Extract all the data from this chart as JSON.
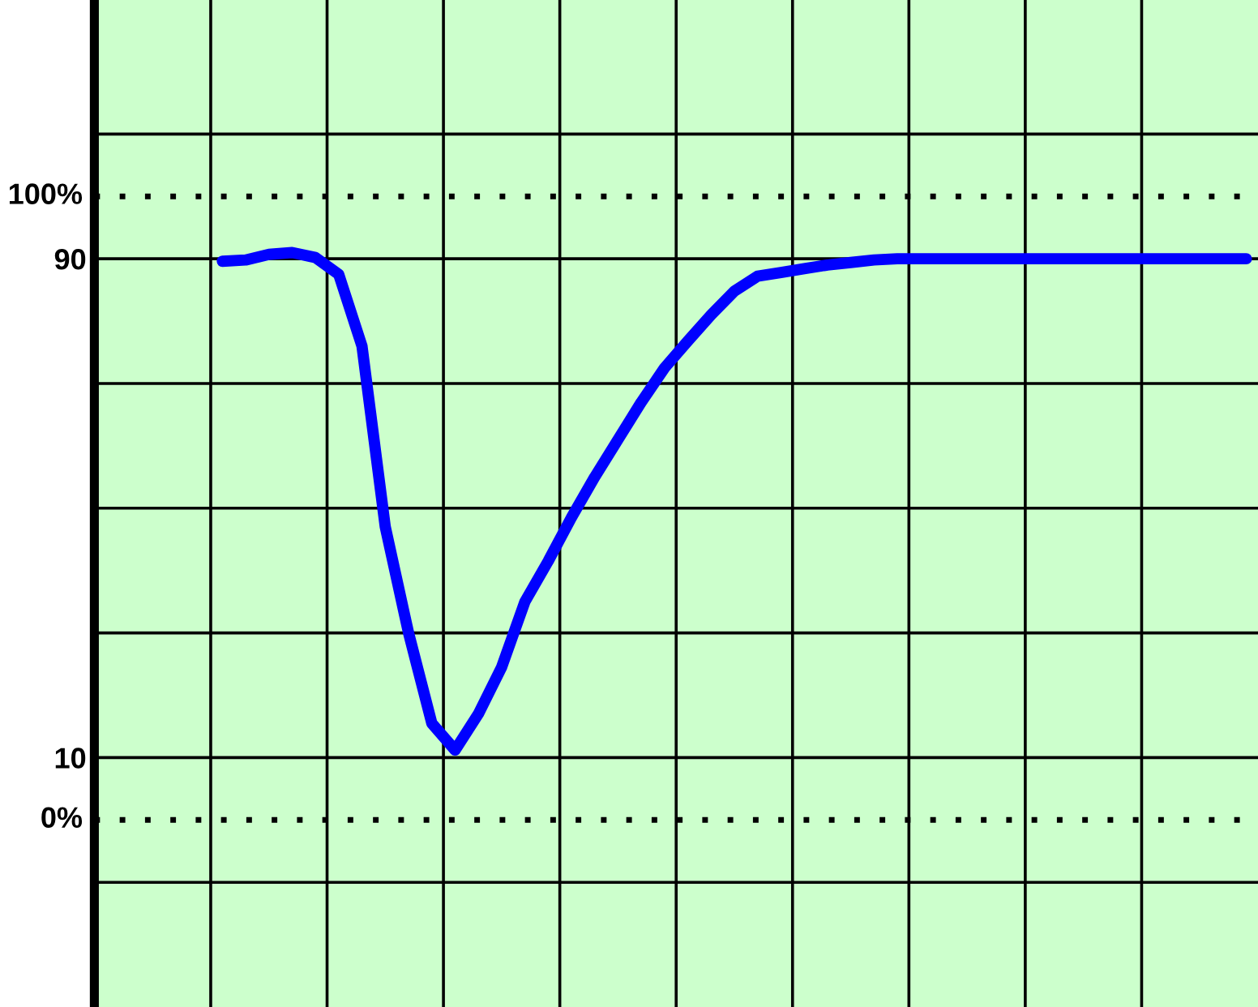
{
  "chart_data": {
    "type": "line",
    "categories": [
      null,
      null,
      null,
      null,
      null,
      null,
      null,
      null,
      null,
      null,
      null,
      null,
      null,
      null,
      null,
      null,
      null,
      null,
      null,
      null,
      null,
      null,
      null,
      null,
      null,
      null,
      null,
      null,
      null,
      null,
      null,
      null,
      null,
      null,
      null,
      null,
      null,
      null,
      null,
      null,
      null,
      null,
      null,
      null,
      null,
      null,
      null,
      null,
      null,
      null
    ],
    "series": [
      {
        "color": "#0000ff",
        "values": [
          null,
          null,
          null,
          null,
          null,
          89.6,
          89.8,
          90.7,
          91,
          90.2,
          87.5,
          76,
          47,
          30,
          15.5,
          11.2,
          17,
          24.5,
          35,
          41.5,
          48.5,
          55,
          61,
          67,
          72.5,
          76.8,
          81,
          84.8,
          87.2,
          87.8,
          88.4,
          89,
          89.4,
          89.8,
          90,
          90,
          90,
          90,
          90,
          90,
          90,
          90,
          90,
          90,
          90,
          90,
          90,
          90,
          90,
          90
        ]
      }
    ],
    "ylim": [
      -30,
      131.5
    ],
    "yticks": [
      {
        "value": -10,
        "label": null
      },
      {
        "value": 10,
        "label": "10"
      },
      {
        "value": 30,
        "label": null
      },
      {
        "value": 50,
        "label": null
      },
      {
        "value": 70,
        "label": null
      },
      {
        "value": 90,
        "label": "90"
      },
      {
        "value": 110,
        "label": null
      }
    ],
    "ref_lines": [
      {
        "axis": "y",
        "value": 100,
        "label": "100%",
        "line_style": "dotted",
        "color": "#000000"
      },
      {
        "axis": "y",
        "value": 0,
        "label": "0%",
        "line_style": "dotted",
        "color": "#000000"
      }
    ],
    "grid": true,
    "tick_labels": "y",
    "legend": false,
    "marker": "none",
    "line_style": "solid"
  }
}
